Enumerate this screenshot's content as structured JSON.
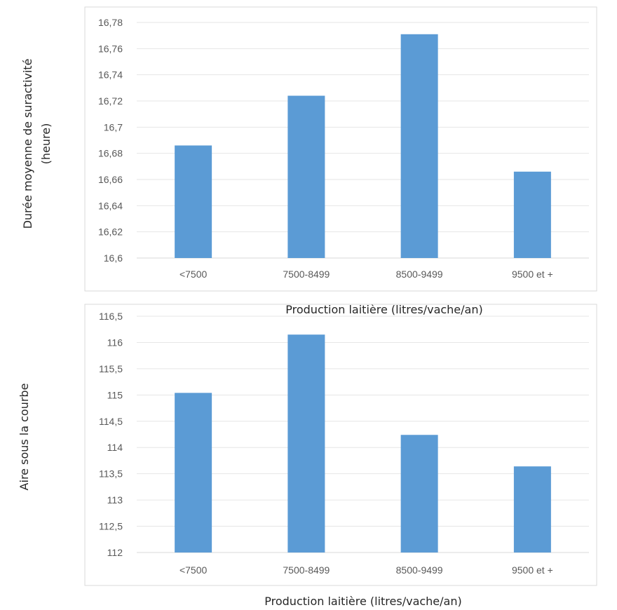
{
  "chart_data": [
    {
      "type": "bar",
      "categories": [
        "<7500",
        "7500-8499",
        "8500-9499",
        "9500 et +"
      ],
      "values": [
        16.686,
        16.724,
        16.771,
        16.666
      ],
      "ylim": [
        16.6,
        16.78
      ],
      "yticks": [
        "16,6",
        "16,62",
        "16,64",
        "16,66",
        "16,68",
        "16,7",
        "16,72",
        "16,74",
        "16,76",
        "16,78"
      ],
      "ylabel_lines": [
        "Durée moyenne de suractivité",
        "(heure)"
      ],
      "xlabel": "Production laitière (litres/vache/an)",
      "bar_color": "#5B9BD5",
      "grid": true,
      "legend": "none"
    },
    {
      "type": "bar",
      "categories": [
        "<7500",
        "7500-8499",
        "8500-9499",
        "9500 et +"
      ],
      "values": [
        115.04,
        116.15,
        114.24,
        113.64
      ],
      "ylim": [
        112,
        116.5
      ],
      "yticks": [
        "112",
        "112,5",
        "113",
        "113,5",
        "114",
        "114,5",
        "115",
        "115,5",
        "116",
        "116,5"
      ],
      "ylabel_lines": [
        "Aire sous la courbe"
      ],
      "xlabel": "Production laitière (litres/vache/an)",
      "bar_color": "#5B9BD5",
      "grid": true,
      "legend": "none"
    }
  ]
}
